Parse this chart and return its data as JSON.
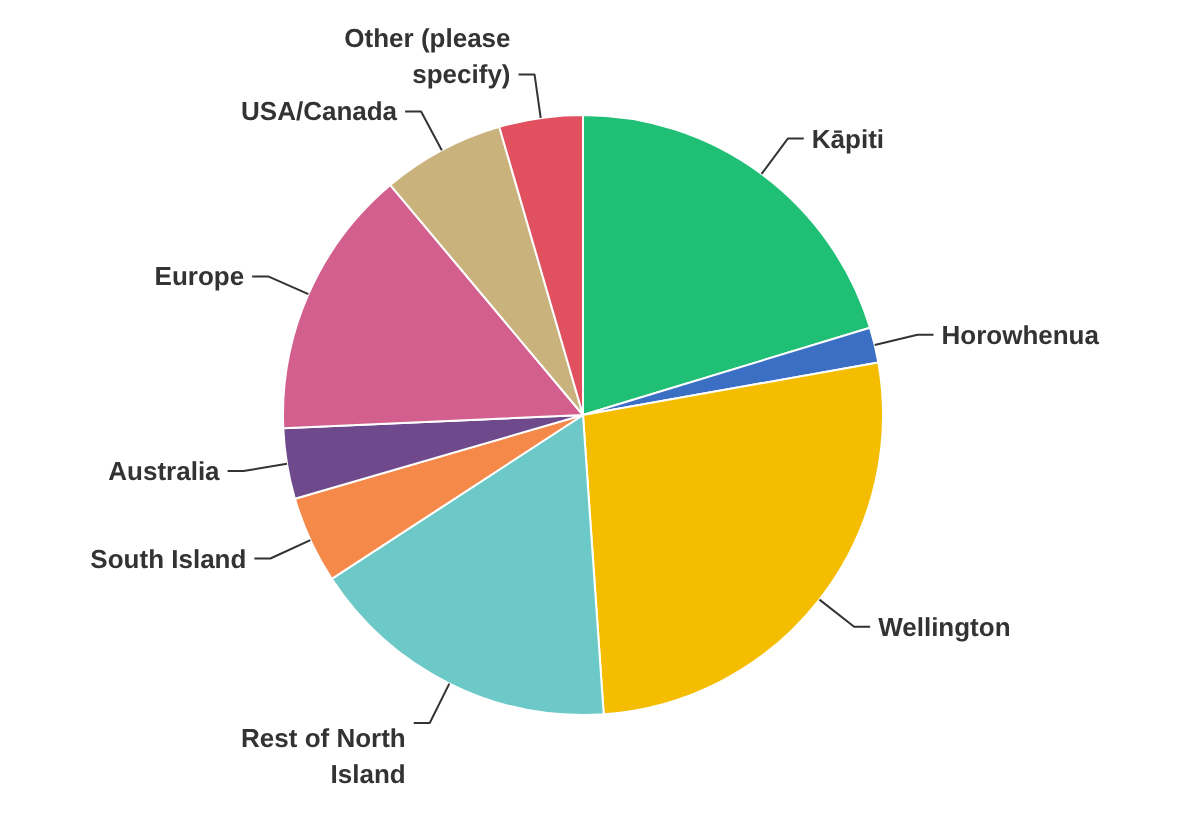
{
  "chart_data": {
    "type": "pie",
    "categories": [
      "Kāpiti",
      "Horowhenua",
      "Wellington",
      "Rest of North Island",
      "South Island",
      "Australia",
      "Europe",
      "USA/Canada",
      "Other (please specify)"
    ],
    "values": [
      20.3,
      1.9,
      26.7,
      16.9,
      4.7,
      3.8,
      14.6,
      6.6,
      4.5
    ],
    "colors": [
      "#1fbf75",
      "#3b6fc4",
      "#f5bd00",
      "#6cc9c8",
      "#f5894a",
      "#6e4a8c",
      "#d35f8e",
      "#c9b27c",
      "#e0505e"
    ]
  }
}
